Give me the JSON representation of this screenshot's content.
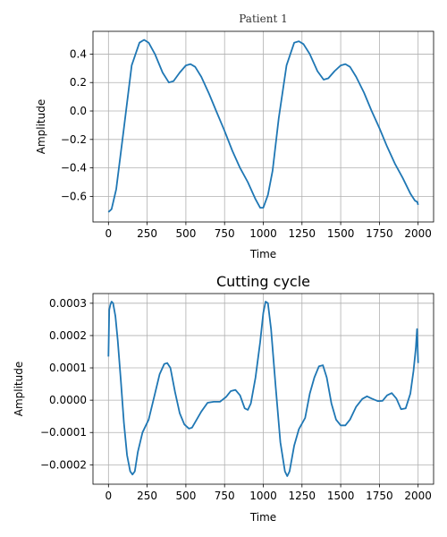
{
  "colors": {
    "line": "#1f77b4",
    "grid": "#b0b0b0",
    "axes": "#000000",
    "background": "#ffffff"
  },
  "chart_data": [
    {
      "type": "line",
      "title": "Patient 1",
      "xlabel": "Time",
      "ylabel": "Amplitude",
      "xlim": [
        -100,
        2100
      ],
      "ylim": [
        -0.78,
        0.56
      ],
      "grid": true,
      "xticks": [
        0,
        250,
        500,
        750,
        1000,
        1250,
        1500,
        1750,
        2000
      ],
      "xtick_labels": [
        "0",
        "250",
        "500",
        "750",
        "1000",
        "1250",
        "1500",
        "1750",
        "2000"
      ],
      "yticks": [
        -0.6,
        -0.4,
        -0.2,
        0.0,
        0.2,
        0.4
      ],
      "ytick_labels": [
        "−0.6",
        "−0.4",
        "−0.2",
        "0.0",
        "0.2",
        "0.4"
      ],
      "series": [
        {
          "x": [
            0,
            20,
            50,
            100,
            150,
            200,
            230,
            260,
            300,
            350,
            390,
            420,
            460,
            500,
            530,
            560,
            600,
            650,
            700,
            750,
            800,
            850,
            900,
            950,
            980,
            1000,
            1030,
            1060,
            1100,
            1150,
            1200,
            1230,
            1260,
            1300,
            1350,
            1390,
            1420,
            1460,
            1500,
            1530,
            1560,
            1600,
            1650,
            1700,
            1750,
            1800,
            1850,
            1900,
            1950,
            1980,
            1995,
            2000
          ],
          "y": [
            -0.71,
            -0.69,
            -0.55,
            -0.12,
            0.32,
            0.48,
            0.5,
            0.48,
            0.4,
            0.27,
            0.2,
            0.21,
            0.27,
            0.32,
            0.33,
            0.31,
            0.24,
            0.12,
            -0.01,
            -0.14,
            -0.28,
            -0.4,
            -0.5,
            -0.62,
            -0.68,
            -0.68,
            -0.59,
            -0.42,
            -0.05,
            0.32,
            0.48,
            0.49,
            0.47,
            0.4,
            0.28,
            0.22,
            0.23,
            0.28,
            0.32,
            0.33,
            0.31,
            0.24,
            0.13,
            0.0,
            -0.12,
            -0.25,
            -0.37,
            -0.47,
            -0.58,
            -0.63,
            -0.64,
            -0.66
          ]
        }
      ]
    },
    {
      "type": "line",
      "title": "Cutting cycle",
      "xlabel": "Time",
      "ylabel": "Amplitude",
      "xlim": [
        -100,
        2100
      ],
      "ylim": [
        -0.00026,
        0.00033
      ],
      "grid": true,
      "xticks": [
        0,
        250,
        500,
        750,
        1000,
        1250,
        1500,
        1750,
        2000
      ],
      "xtick_labels": [
        "0",
        "250",
        "500",
        "750",
        "1000",
        "1250",
        "1500",
        "1750",
        "2000"
      ],
      "yticks": [
        -0.0002,
        -0.0001,
        0.0,
        0.0001,
        0.0002,
        0.0003
      ],
      "ytick_labels": [
        "−0.0002",
        "−0.0001",
        "0.0000",
        "0.0001",
        "0.0002",
        "0.0003"
      ],
      "series": [
        {
          "x": [
            0,
            5,
            12,
            20,
            30,
            45,
            60,
            80,
            100,
            120,
            140,
            155,
            170,
            190,
            220,
            260,
            300,
            330,
            360,
            380,
            400,
            430,
            460,
            490,
            520,
            540,
            570,
            600,
            640,
            680,
            720,
            760,
            790,
            820,
            850,
            880,
            900,
            920,
            950,
            980,
            1000,
            1015,
            1030,
            1050,
            1080,
            1110,
            1140,
            1155,
            1170,
            1200,
            1230,
            1270,
            1300,
            1330,
            1360,
            1385,
            1410,
            1440,
            1470,
            1500,
            1530,
            1560,
            1600,
            1640,
            1670,
            1700,
            1740,
            1770,
            1800,
            1830,
            1860,
            1890,
            1920,
            1950,
            1970,
            1985,
            1993,
            2000
          ],
          "y": [
            0.000135,
            0.00028,
            0.000295,
            0.000305,
            0.0003,
            0.00026,
            0.000185,
            6e-05,
            -7e-05,
            -0.00017,
            -0.00022,
            -0.00023,
            -0.00022,
            -0.00016,
            -0.0001,
            -6e-05,
            2e-05,
            8e-05,
            0.000112,
            0.000115,
            0.0001,
            2.5e-05,
            -4e-05,
            -7.5e-05,
            -8.8e-05,
            -8.5e-05,
            -6e-05,
            -3.5e-05,
            -8e-06,
            -5e-06,
            -5e-06,
            1e-05,
            2.8e-05,
            3.2e-05,
            1.5e-05,
            -2.5e-05,
            -3e-05,
            -1e-05,
            7e-05,
            0.00018,
            0.00027,
            0.000305,
            0.0003,
            0.00022,
            4e-05,
            -0.00013,
            -0.00022,
            -0.000235,
            -0.00022,
            -0.00014,
            -9e-05,
            -5.5e-05,
            2e-05,
            7e-05,
            0.000105,
            0.000108,
            7e-05,
            -1e-05,
            -6e-05,
            -7.8e-05,
            -7.8e-05,
            -6e-05,
            -2e-05,
            4e-06,
            1.2e-05,
            5e-06,
            -3e-06,
            -2e-06,
            1.5e-05,
            2.2e-05,
            5e-06,
            -2.8e-05,
            -2.5e-05,
            2e-05,
            9e-05,
            0.00016,
            0.00022,
            0.000115
          ]
        }
      ]
    }
  ]
}
